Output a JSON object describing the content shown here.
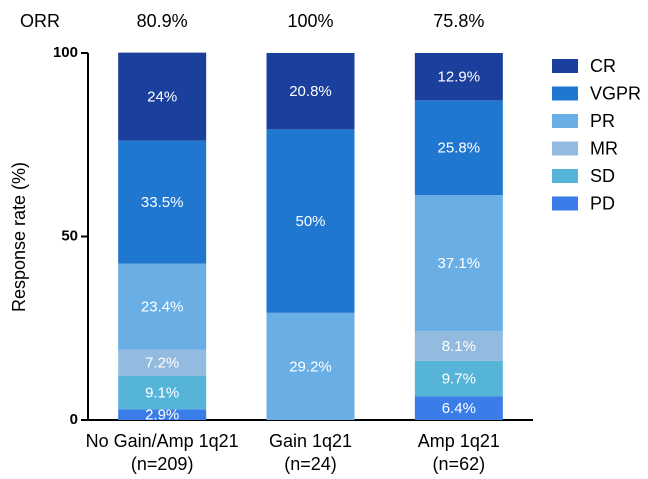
{
  "chart_data": {
    "type": "stacked-bar",
    "y_label": "Response rate   (%)",
    "annotation_label": "ORR",
    "annotation_labels": [
      "80.9%",
      "100%",
      "75.8%"
    ],
    "categories": [
      "No Gain/Amp 1q21",
      "Gain 1q21",
      "Amp 1q21"
    ],
    "category_sublabels": [
      "(n=209)",
      "(n=24)",
      "(n=62)"
    ],
    "ylim": [
      0,
      100
    ],
    "yticks": [
      0,
      50,
      100
    ],
    "grid": false,
    "legend": "right",
    "series": [
      {
        "name": "CR",
        "color": "#1a3f9c",
        "values": [
          24,
          20.8,
          12.9
        ],
        "value_labels": [
          "24%",
          "20.8%",
          "12.9%"
        ]
      },
      {
        "name": "VGPR",
        "color": "#1f77d0",
        "values": [
          33.5,
          50,
          25.8
        ],
        "value_labels": [
          "33.5%",
          "50%",
          "25.8%"
        ]
      },
      {
        "name": "PR",
        "color": "#6aaee6",
        "values": [
          23.4,
          29.2,
          37.1
        ],
        "value_labels": [
          "23.4%",
          "29.2%",
          "37.1%"
        ]
      },
      {
        "name": "MR",
        "color": "#93bbdf",
        "values": [
          7.2,
          null,
          8.1
        ],
        "value_labels": [
          "7.2%",
          null,
          "8.1%"
        ]
      },
      {
        "name": "SD",
        "color": "#55b4d8",
        "values": [
          9.1,
          null,
          9.7
        ],
        "value_labels": [
          "9.1%",
          null,
          "9.7%"
        ]
      },
      {
        "name": "PD",
        "color": "#3a7de8",
        "values": [
          2.9,
          null,
          6.4
        ],
        "value_labels": [
          "2.9%",
          null,
          "6.4%"
        ]
      }
    ]
  }
}
